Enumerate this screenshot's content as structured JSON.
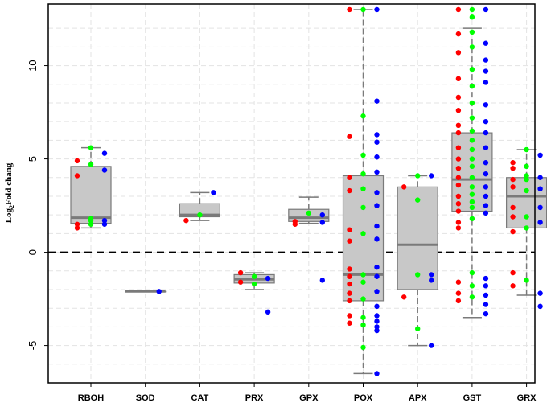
{
  "chart_data": {
    "type": "box",
    "title": "",
    "xlabel": "",
    "ylabel": "Log2Fold chang",
    "ylabel_parts": {
      "base": "Log",
      "sub": "2",
      "rest": "Fold chang"
    },
    "ylim": [
      -7,
      13.3
    ],
    "yticks": [
      -5,
      0,
      5,
      10
    ],
    "reference_line": 0,
    "grid": true,
    "colors": {
      "red": "#ff0000",
      "green": "#00ff00",
      "blue": "#0000ff",
      "box_fill": "#c8c8c8",
      "box_stroke": "#7a7a7a",
      "median": "#7a7a7a"
    },
    "categories": [
      "RBOH",
      "SOD",
      "CAT",
      "PRX",
      "GPX",
      "POX",
      "APX",
      "GST",
      "GRX"
    ],
    "boxes": [
      {
        "name": "RBOH",
        "min": 1.3,
        "q1": 1.55,
        "median": 1.85,
        "q3": 4.6,
        "max": 5.6
      },
      {
        "name": "SOD",
        "min": -2.1,
        "q1": -2.1,
        "median": -2.1,
        "q3": -2.1,
        "max": -2.1
      },
      {
        "name": "CAT",
        "min": 1.7,
        "q1": 1.9,
        "median": 2.0,
        "q3": 2.6,
        "max": 3.2
      },
      {
        "name": "PRX",
        "min": -2.0,
        "q1": -1.65,
        "median": -1.45,
        "q3": -1.2,
        "max": -1.1
      },
      {
        "name": "GPX",
        "min": 1.55,
        "q1": 1.65,
        "median": 1.85,
        "q3": 2.3,
        "max": 2.95
      },
      {
        "name": "POX",
        "min": -6.5,
        "q1": -2.6,
        "median": -1.2,
        "q3": 4.1,
        "max": 13.0
      },
      {
        "name": "APX",
        "min": -5.0,
        "q1": -2.0,
        "median": 0.4,
        "q3": 3.5,
        "max": 4.1
      },
      {
        "name": "GST",
        "min": -3.5,
        "q1": 2.2,
        "median": 3.9,
        "q3": 6.4,
        "max": 12.0
      },
      {
        "name": "GRX",
        "min": -2.3,
        "q1": 1.3,
        "median": 3.0,
        "q3": 4.0,
        "max": 5.5
      }
    ],
    "points": [
      {
        "category": "RBOH",
        "red": [
          1.3,
          1.5,
          4.1,
          4.9
        ],
        "green": [
          1.5,
          1.7,
          1.8,
          4.7,
          5.6
        ],
        "blue": [
          1.5,
          1.7,
          4.4,
          5.3
        ]
      },
      {
        "category": "SOD",
        "red": [],
        "green": [],
        "blue": [
          -2.1
        ]
      },
      {
        "category": "CAT",
        "red": [
          1.7
        ],
        "green": [
          2.0
        ],
        "blue": [
          3.2
        ]
      },
      {
        "category": "PRX",
        "red": [
          -1.1,
          -1.6
        ],
        "green": [
          -1.3,
          -1.7
        ],
        "blue": [
          -1.4,
          -3.2
        ]
      },
      {
        "category": "GPX",
        "red": [
          1.5,
          1.65
        ],
        "green": [
          2.1
        ],
        "blue": [
          1.6,
          2.0,
          -1.5
        ]
      },
      {
        "category": "POX",
        "red": [
          13.0,
          6.2,
          4.0,
          3.3,
          1.2,
          0.6,
          -0.9,
          -1.3,
          -1.7,
          -2.2,
          -2.6,
          -3.4,
          -3.8
        ],
        "green": [
          13.0,
          7.3,
          5.2,
          4.2,
          3.4,
          2.4,
          1.0,
          -1.2,
          -1.6,
          -2.5,
          -3.5,
          -3.9,
          -5.1
        ],
        "blue": [
          13.0,
          8.1,
          6.3,
          5.9,
          5.1,
          4.3,
          3.2,
          2.5,
          1.4,
          0.7,
          -0.8,
          -1.3,
          -2.1,
          -2.9,
          -3.4,
          -3.7,
          -4.0,
          -4.2,
          -6.5
        ]
      },
      {
        "category": "APX",
        "red": [
          3.5,
          -2.4
        ],
        "green": [
          4.1,
          2.8,
          -1.2,
          -4.1
        ],
        "blue": [
          4.1,
          -1.2,
          -1.5,
          -5.0
        ]
      },
      {
        "category": "GST",
        "red": [
          13.0,
          11.7,
          10.7,
          9.3,
          8.3,
          7.6,
          6.8,
          6.4,
          5.6,
          5.0,
          4.5,
          4.0,
          3.6,
          3.0,
          2.6,
          2.2,
          1.6,
          1.3,
          -1.6,
          -2.2,
          -2.6
        ],
        "green": [
          13.0,
          12.6,
          11.8,
          11.0,
          9.8,
          8.9,
          8.0,
          7.2,
          6.5,
          6.0,
          5.5,
          5.0,
          4.6,
          4.0,
          3.5,
          3.1,
          2.7,
          2.4,
          1.8,
          -1.1,
          -1.8,
          -2.4
        ],
        "blue": [
          13.0,
          11.2,
          10.3,
          9.7,
          9.1,
          7.9,
          7.0,
          6.4,
          5.6,
          4.8,
          4.2,
          3.5,
          3.0,
          2.5,
          2.1,
          -1.4,
          -1.8,
          -2.3,
          -2.8,
          -3.3
        ]
      },
      {
        "category": "GRX",
        "red": [
          4.8,
          4.5,
          3.9,
          3.5,
          2.4,
          1.9,
          1.1,
          -1.1,
          -1.8
        ],
        "green": [
          5.5,
          4.6,
          4.1,
          3.9,
          3.3,
          1.9,
          1.3,
          -1.5
        ],
        "blue": [
          5.2,
          4.0,
          3.4,
          2.4,
          1.6,
          -2.2,
          -2.9
        ]
      }
    ]
  }
}
